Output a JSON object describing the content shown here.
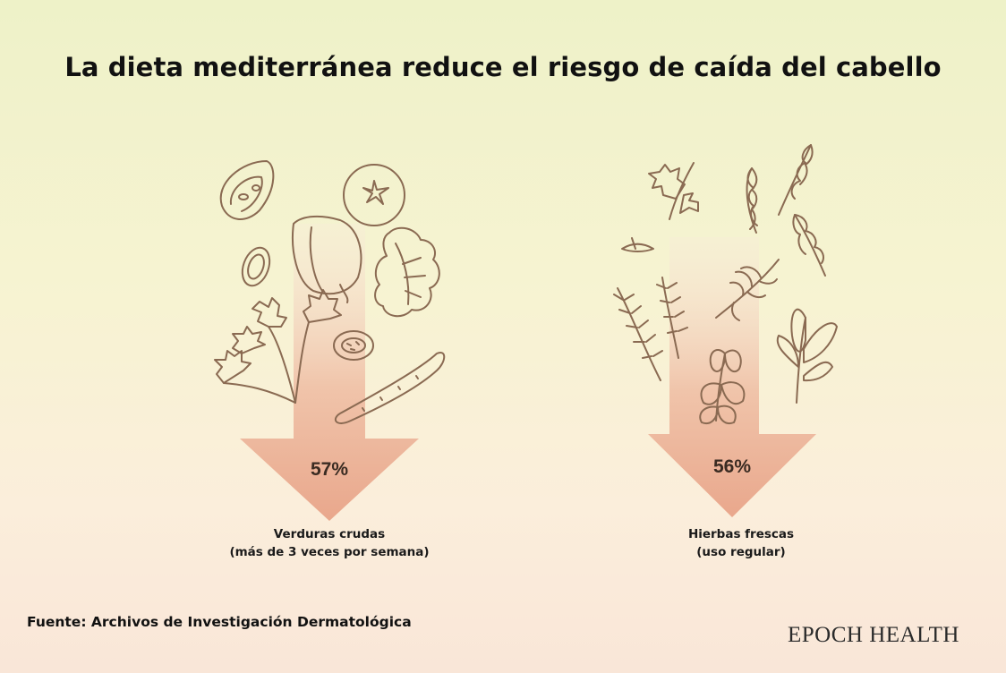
{
  "title": "La dieta mediterránea reduce el riesgo de caída del cabello",
  "items": [
    {
      "percent": "57%",
      "label": "Verduras crudas",
      "sublabel": "(más de 3 veces por semana)",
      "icons": [
        "tomato-slice-icon",
        "tomato-icon",
        "bell-pepper-icon",
        "lettuce-icon",
        "zucchini-slice-icon",
        "parsley-icon",
        "cucumber-slice-icon",
        "cucumber-icon"
      ]
    },
    {
      "percent": "56%",
      "label": "Hierbas frescas",
      "sublabel": "(uso regular)",
      "icons": [
        "parsley-sprig-icon",
        "arugula-leaf-icon",
        "rosemary-icon",
        "dill-icon",
        "sage-icon",
        "mint-icon"
      ]
    }
  ],
  "source": "Fuente: Archivos de Investigación Dermatológica",
  "brand": "EPOCH HEALTH",
  "colors": {
    "arrow_top": "#f8eadb",
    "arrow_bottom": "#eaa98f",
    "illustration_stroke": "#8a6a52"
  }
}
